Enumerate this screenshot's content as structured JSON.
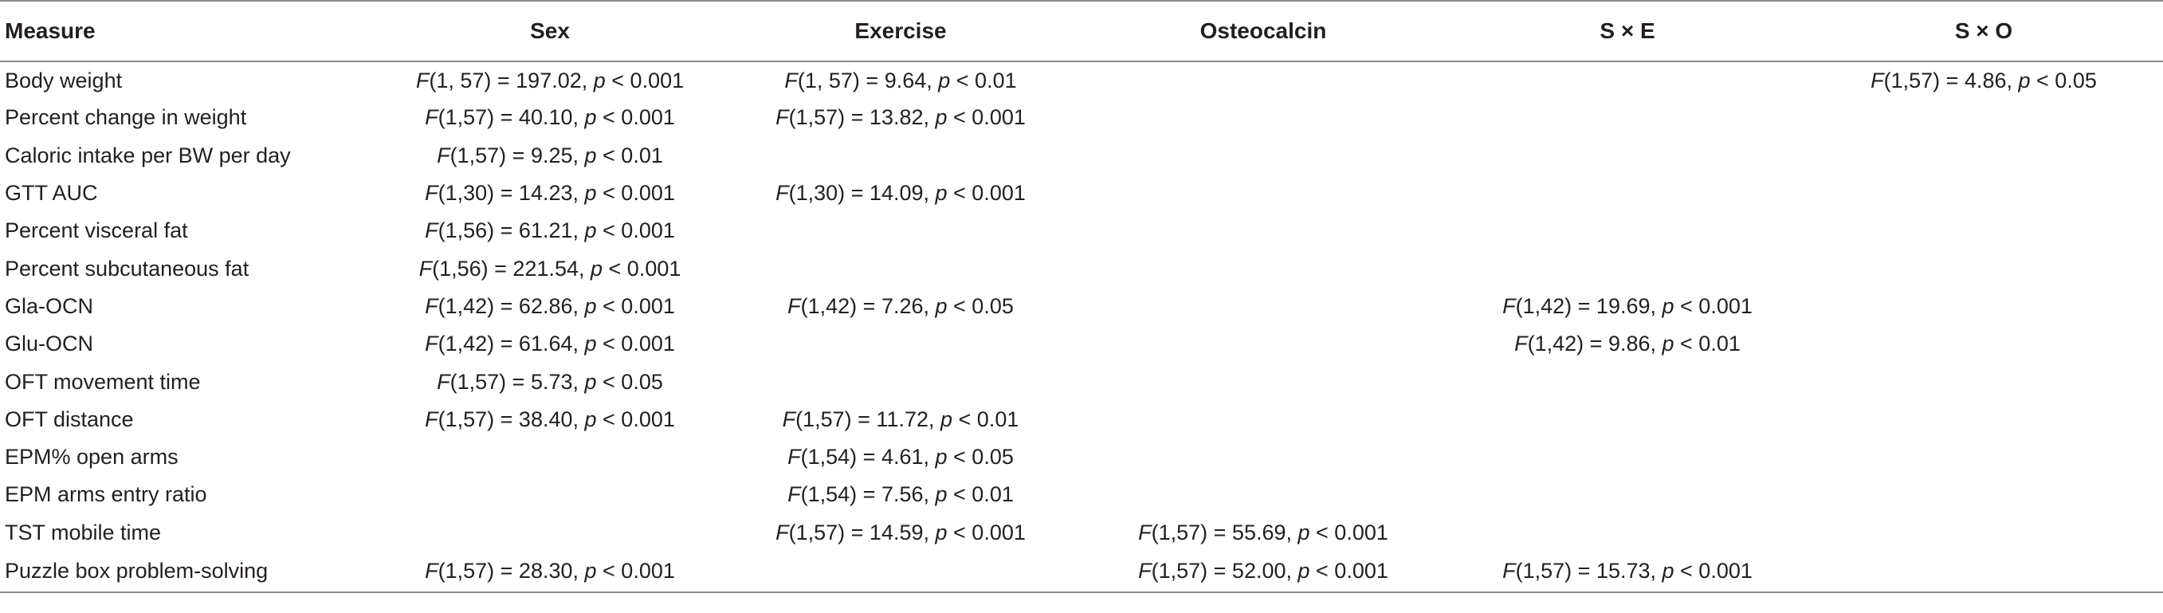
{
  "table": {
    "headers": [
      "Measure",
      "Sex",
      "Exercise",
      "Osteocalcin",
      "S × E",
      "S × O"
    ],
    "rows": [
      {
        "measure": "Body weight",
        "sex": [
          "F",
          "(1, 57) = 197.02, ",
          "p",
          " < 0.001"
        ],
        "exercise": [
          "F",
          "(1, 57) = 9.64, ",
          "p",
          " < 0.01"
        ],
        "osteocalcin": null,
        "sxe": null,
        "sxo": [
          "F",
          "(1,57) = 4.86, ",
          "p",
          " < 0.05"
        ]
      },
      {
        "measure": "Percent change in weight",
        "sex": [
          "F",
          "(1,57) = 40.10, ",
          "p",
          " < 0.001"
        ],
        "exercise": [
          "F",
          "(1,57) = 13.82, ",
          "p",
          " < 0.001"
        ],
        "osteocalcin": null,
        "sxe": null,
        "sxo": null
      },
      {
        "measure": "Caloric intake per BW per day",
        "sex": [
          "F",
          "(1,57) = 9.25, ",
          "p",
          " < 0.01"
        ],
        "exercise": null,
        "osteocalcin": null,
        "sxe": null,
        "sxo": null
      },
      {
        "measure": "GTT AUC",
        "sex": [
          "F",
          "(1,30) = 14.23, ",
          "p",
          " < 0.001"
        ],
        "exercise": [
          "F",
          "(1,30) = 14.09, ",
          "p",
          " < 0.001"
        ],
        "osteocalcin": null,
        "sxe": null,
        "sxo": null
      },
      {
        "measure": "Percent visceral fat",
        "sex": [
          "F",
          "(1,56) = 61.21, ",
          "p",
          " < 0.001"
        ],
        "exercise": null,
        "osteocalcin": null,
        "sxe": null,
        "sxo": null
      },
      {
        "measure": "Percent subcutaneous fat",
        "sex": [
          "F",
          "(1,56) = 221.54, ",
          "p",
          " < 0.001"
        ],
        "exercise": null,
        "osteocalcin": null,
        "sxe": null,
        "sxo": null
      },
      {
        "measure": "Gla-OCN",
        "sex": [
          "F",
          "(1,42) = 62.86, ",
          "p",
          " < 0.001"
        ],
        "exercise": [
          "F",
          "(1,42) = 7.26, ",
          "p",
          " < 0.05"
        ],
        "osteocalcin": null,
        "sxe": [
          "F",
          "(1,42) = 19.69, ",
          "p",
          " < 0.001"
        ],
        "sxo": null
      },
      {
        "measure": "Glu-OCN",
        "sex": [
          "F",
          "(1,42) = 61.64, ",
          "p",
          " < 0.001"
        ],
        "exercise": null,
        "osteocalcin": null,
        "sxe": [
          "F",
          "(1,42) = 9.86, ",
          "p",
          " < 0.01"
        ],
        "sxo": null
      },
      {
        "measure": "OFT movement time",
        "sex": [
          "F",
          "(1,57) = 5.73, ",
          "p",
          " < 0.05"
        ],
        "exercise": null,
        "osteocalcin": null,
        "sxe": null,
        "sxo": null
      },
      {
        "measure": "OFT distance",
        "sex": [
          "F",
          "(1,57) = 38.40, ",
          "p",
          " < 0.001"
        ],
        "exercise": [
          "F",
          "(1,57) = 11.72, ",
          "p",
          " < 0.01"
        ],
        "osteocalcin": null,
        "sxe": null,
        "sxo": null
      },
      {
        "measure": "EPM% open arms",
        "sex": null,
        "exercise": [
          "F",
          "(1,54) = 4.61, ",
          "p",
          " < 0.05"
        ],
        "osteocalcin": null,
        "sxe": null,
        "sxo": null
      },
      {
        "measure": "EPM arms entry ratio",
        "sex": null,
        "exercise": [
          "F",
          "(1,54) = 7.56, ",
          "p",
          " < 0.01"
        ],
        "osteocalcin": null,
        "sxe": null,
        "sxo": null
      },
      {
        "measure": "TST mobile time",
        "sex": null,
        "exercise": [
          "F",
          "(1,57) = 14.59, ",
          "p",
          " < 0.001"
        ],
        "osteocalcin": [
          "F",
          "(1,57) = 55.69, ",
          "p",
          " < 0.001"
        ],
        "sxe": null,
        "sxo": null
      },
      {
        "measure": "Puzzle box problem-solving",
        "sex": [
          "F",
          "(1,57) = 28.30, ",
          "p",
          " < 0.001"
        ],
        "exercise": null,
        "osteocalcin": [
          "F",
          "(1,57) = 52.00, ",
          "p",
          " < 0.001"
        ],
        "sxe": [
          "F",
          "(1,57) = 15.73, ",
          "p",
          " < 0.001"
        ],
        "sxo": null
      }
    ]
  }
}
